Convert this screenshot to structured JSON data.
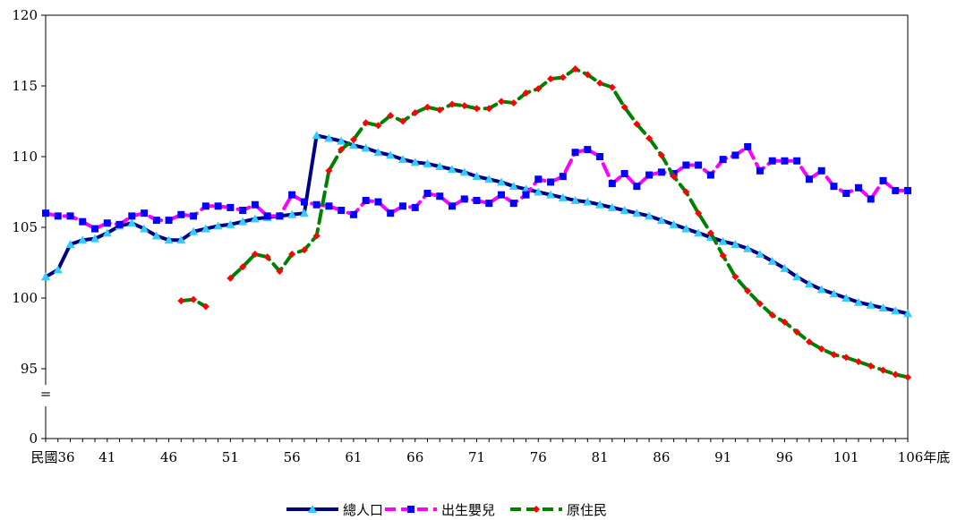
{
  "chart_data": {
    "type": "line",
    "x": [
      36,
      37,
      38,
      39,
      40,
      41,
      42,
      43,
      44,
      45,
      46,
      47,
      48,
      49,
      50,
      51,
      52,
      53,
      54,
      55,
      56,
      57,
      58,
      59,
      60,
      61,
      62,
      63,
      64,
      65,
      66,
      67,
      68,
      69,
      70,
      71,
      72,
      73,
      74,
      75,
      76,
      77,
      78,
      79,
      80,
      81,
      82,
      83,
      84,
      85,
      86,
      87,
      88,
      89,
      90,
      91,
      92,
      93,
      94,
      95,
      96,
      97,
      98,
      99,
      100,
      101,
      102,
      103,
      104,
      105,
      106
    ],
    "x_tick_labels": [
      "民國36",
      "41",
      "46",
      "51",
      "56",
      "61",
      "66",
      "71",
      "76",
      "81",
      "86",
      "91",
      "96",
      "101",
      "106年底"
    ],
    "x_tick_values": [
      36,
      41,
      46,
      51,
      56,
      61,
      66,
      71,
      76,
      81,
      86,
      91,
      96,
      101,
      106
    ],
    "y_ticks": [
      0,
      95,
      100,
      105,
      110,
      115,
      120
    ],
    "ylim": [
      95,
      120
    ],
    "axis_break": true,
    "axis_break_mark": "=",
    "grid": false,
    "legend_position": "bottom-center",
    "series": [
      {
        "name": "總人口",
        "color": "#000080",
        "marker": "triangle",
        "marker_color": "#33ccff",
        "dash": "solid",
        "values": [
          101.5,
          102.0,
          103.8,
          104.1,
          104.2,
          104.6,
          105.1,
          105.3,
          104.9,
          104.4,
          104.1,
          104.1,
          104.7,
          104.9,
          105.1,
          105.2,
          105.4,
          105.6,
          105.7,
          105.8,
          105.9,
          106.0,
          111.5,
          111.3,
          111.1,
          110.8,
          110.6,
          110.3,
          110.1,
          109.8,
          109.6,
          109.5,
          109.3,
          109.1,
          108.9,
          108.6,
          108.4,
          108.2,
          107.9,
          107.7,
          107.5,
          107.3,
          107.1,
          106.9,
          106.8,
          106.6,
          106.4,
          106.2,
          106.0,
          105.8,
          105.5,
          105.2,
          104.9,
          104.6,
          104.3,
          104.0,
          103.8,
          103.5,
          103.1,
          102.6,
          102.1,
          101.5,
          101.0,
          100.6,
          100.3,
          100.0,
          99.7,
          99.5,
          99.3,
          99.1,
          98.9
        ]
      },
      {
        "name": "出生嬰兒",
        "color": "#ff00ff",
        "marker": "square",
        "marker_color": "#0000ff",
        "dash": "dashed",
        "values": [
          106.0,
          105.8,
          105.8,
          105.4,
          104.9,
          105.3,
          105.2,
          105.8,
          106.0,
          105.5,
          105.5,
          105.9,
          105.8,
          106.5,
          106.5,
          106.4,
          106.2,
          106.6,
          105.8,
          105.8,
          107.3,
          106.8,
          106.6,
          106.5,
          106.2,
          105.9,
          106.9,
          106.8,
          106.0,
          106.5,
          106.4,
          107.4,
          107.2,
          106.5,
          107.0,
          106.9,
          106.7,
          107.3,
          106.7,
          107.3,
          108.4,
          108.2,
          108.6,
          110.3,
          110.5,
          110.0,
          108.1,
          108.8,
          107.9,
          108.7,
          108.9,
          108.8,
          109.4,
          109.4,
          108.7,
          109.8,
          110.1,
          110.7,
          109.0,
          109.7,
          109.7,
          109.7,
          108.4,
          109.0,
          107.9,
          107.4,
          107.8,
          107.0,
          108.3,
          107.6,
          107.6
        ]
      },
      {
        "name": "原住民",
        "color": "#008000",
        "marker": "diamond",
        "marker_color": "#ff0000",
        "dash": "dashed",
        "values": [
          null,
          null,
          null,
          null,
          null,
          null,
          null,
          null,
          null,
          null,
          null,
          99.8,
          99.9,
          99.4,
          null,
          101.4,
          102.2,
          103.1,
          102.9,
          101.9,
          103.1,
          103.4,
          104.4,
          109.0,
          110.5,
          111.2,
          112.4,
          112.2,
          112.9,
          112.5,
          113.1,
          113.5,
          113.3,
          113.7,
          113.6,
          113.4,
          113.4,
          113.9,
          113.8,
          114.5,
          114.8,
          115.5,
          115.6,
          116.2,
          115.8,
          115.2,
          114.9,
          113.5,
          112.3,
          111.3,
          110.1,
          108.6,
          107.5,
          106.0,
          104.6,
          103.0,
          101.5,
          100.5,
          99.6,
          98.8,
          98.3,
          97.6,
          96.9,
          96.4,
          96.0,
          95.8,
          95.5,
          95.2,
          94.9,
          94.6,
          94.4
        ]
      }
    ]
  }
}
